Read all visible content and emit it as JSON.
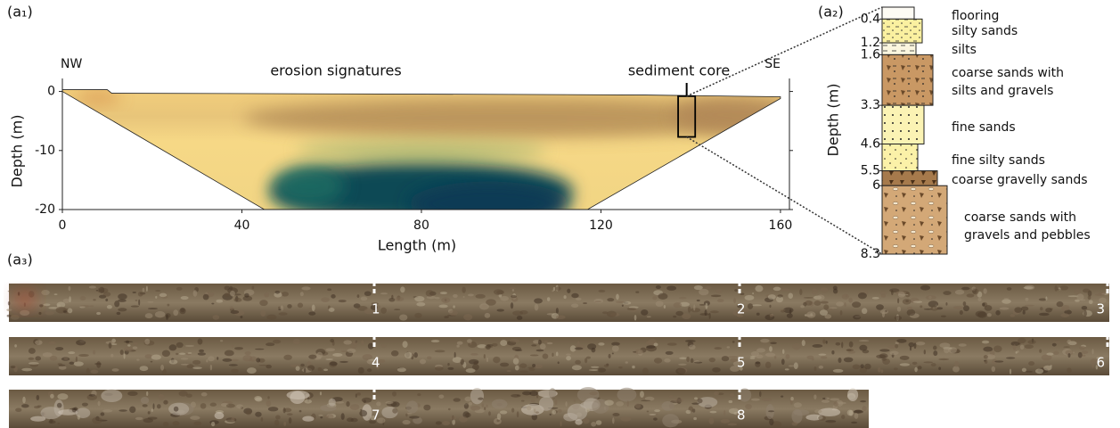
{
  "panel_labels": [
    "(a₁)",
    "(a₂)",
    "(a₃)"
  ],
  "chart_data": {
    "type": "section",
    "annotations": [
      "NW",
      "SE",
      "erosion signatures",
      "sediment core"
    ],
    "xlabel": "Length (m)",
    "ylabel": "Depth (m)",
    "xlim": [
      0,
      162
    ],
    "ylim": [
      -20,
      2.2
    ],
    "xticks": [
      0,
      40,
      80,
      120,
      160
    ],
    "yticks": [
      -20,
      -10,
      0
    ],
    "outline": {
      "x": [
        0,
        10,
        11,
        60,
        100,
        130,
        150,
        160,
        160,
        117,
        45,
        0
      ],
      "y": [
        0.3,
        0.3,
        -0.3,
        -0.4,
        -0.5,
        -0.6,
        -0.8,
        -0.9,
        -1.2,
        -20,
        -20,
        0
      ]
    },
    "core": {
      "x": [
        137.2,
        141
      ],
      "y": [
        -0.8,
        -7.7
      ]
    }
  },
  "stratigraphy": {
    "ylabel": "Depth (m)",
    "ylim": [
      0,
      8.3
    ],
    "depth_ticks": [
      0.4,
      1.2,
      1.6,
      3.3,
      4.6,
      5.5,
      6,
      8.3
    ],
    "layers": [
      {
        "name": [
          "flooring"
        ],
        "top": 0,
        "bottom": 0.4
      },
      {
        "name": [
          "silty sands"
        ],
        "top": 0.4,
        "bottom": 1.2
      },
      {
        "name": [
          "silts"
        ],
        "top": 1.2,
        "bottom": 1.6
      },
      {
        "name": [
          "coarse sands with",
          "silts and gravels"
        ],
        "top": 1.6,
        "bottom": 3.3
      },
      {
        "name": [
          "fine sands"
        ],
        "top": 3.3,
        "bottom": 4.6
      },
      {
        "name": [
          "fine silty sands"
        ],
        "top": 4.6,
        "bottom": 5.5
      },
      {
        "name": [
          "coarse gravelly sands"
        ],
        "top": 5.5,
        "bottom": 6
      },
      {
        "name": [
          "coarse sands with",
          "gravels and pebbles"
        ],
        "top": 6,
        "bottom": 8.3
      }
    ]
  },
  "core_photos": {
    "markers": [
      1,
      2,
      3,
      4,
      5,
      6,
      7,
      8
    ]
  }
}
